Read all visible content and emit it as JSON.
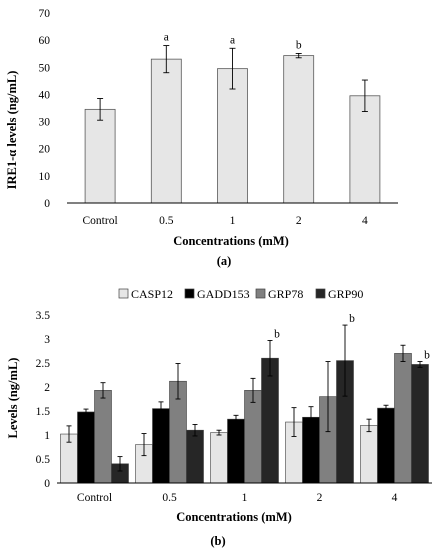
{
  "chart_data": [
    {
      "type": "bar",
      "panel_label": "(a)",
      "categories": [
        "Control",
        "0.5",
        "1",
        "2",
        "4"
      ],
      "values": [
        34.5,
        53,
        49.5,
        54.3,
        39.5
      ],
      "errors": [
        4,
        5,
        7.5,
        0.8,
        5.8
      ],
      "annotations": [
        "",
        "a",
        "a",
        "b",
        ""
      ],
      "xlabel": "Concentrations (mM)",
      "ylabel": "IRE1-α levels (ng/mL)",
      "ylim": [
        0,
        70
      ],
      "yticks": [
        "0",
        "10",
        "20",
        "30",
        "40",
        "50",
        "60",
        "70"
      ],
      "grid": false,
      "bar_color": "#e6e6e6"
    },
    {
      "type": "bar",
      "panel_label": "(b)",
      "categories": [
        "Control",
        "0.5",
        "1",
        "2",
        "4"
      ],
      "xlabel": "Concentrations (mM)",
      "ylabel": "Levels (ng/mL)",
      "ylim": [
        0,
        3.5
      ],
      "yticks": [
        "0",
        "0.5",
        "1",
        "1.5",
        "2",
        "2.5",
        "3",
        "3.5"
      ],
      "grid": false,
      "legend_position": "top",
      "series": [
        {
          "name": "CASP12",
          "color": "#e6e6e6",
          "values": [
            1.02,
            0.8,
            1.05,
            1.27,
            1.2
          ],
          "errors": [
            0.17,
            0.23,
            0.05,
            0.3,
            0.13
          ],
          "annotations": [
            "",
            "",
            "",
            "",
            ""
          ]
        },
        {
          "name": "GADD153",
          "color": "#000000",
          "values": [
            1.48,
            1.55,
            1.33,
            1.37,
            1.56
          ],
          "errors": [
            0.06,
            0.14,
            0.08,
            0.22,
            0.06
          ],
          "annotations": [
            "",
            "",
            "",
            "",
            ""
          ]
        },
        {
          "name": "GRP78",
          "color": "#808080",
          "values": [
            1.93,
            2.12,
            1.93,
            1.8,
            2.7
          ],
          "errors": [
            0.16,
            0.37,
            0.25,
            0.73,
            0.17
          ],
          "annotations": [
            "",
            "",
            "",
            "",
            ""
          ]
        },
        {
          "name": "GRP90",
          "color": "#262626",
          "values": [
            0.4,
            1.1,
            2.6,
            2.55,
            2.47
          ],
          "errors": [
            0.15,
            0.12,
            0.37,
            0.74,
            0.06
          ],
          "annotations": [
            "",
            "",
            "b",
            "b",
            "b"
          ]
        }
      ]
    }
  ]
}
